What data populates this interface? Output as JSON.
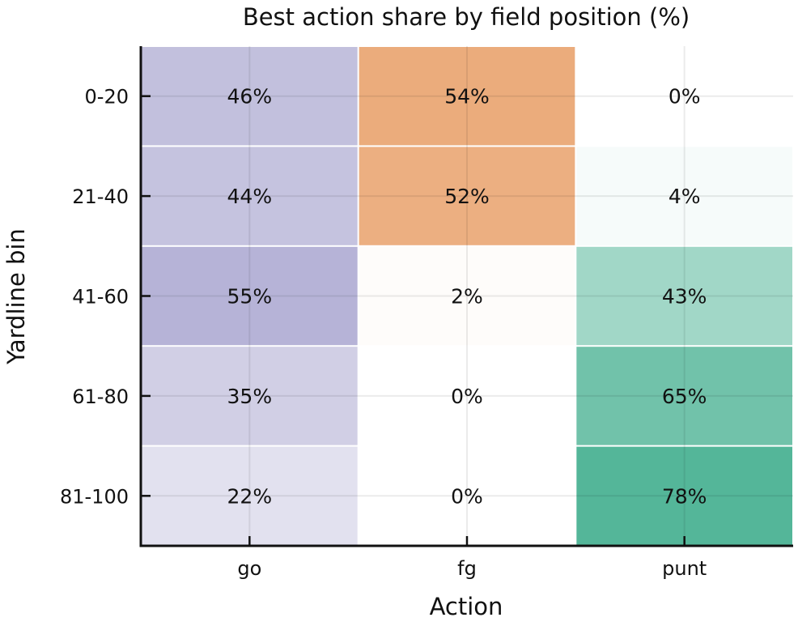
{
  "chart_data": {
    "type": "heatmap",
    "title": "Best action share by field position (%)",
    "xlabel": "Action",
    "ylabel": "Yardline bin",
    "x_categories": [
      "go",
      "fg",
      "punt"
    ],
    "y_categories": [
      "0-20",
      "21-40",
      "41-60",
      "61-80",
      "81-100"
    ],
    "values": [
      [
        46,
        54,
        0
      ],
      [
        44,
        52,
        4
      ],
      [
        55,
        2,
        43
      ],
      [
        35,
        0,
        65
      ],
      [
        22,
        0,
        78
      ]
    ],
    "value_labels": [
      [
        "46%",
        "54%",
        "0%"
      ],
      [
        "44%",
        "52%",
        "4%"
      ],
      [
        "55%",
        "2%",
        "43%"
      ],
      [
        "35%",
        "0%",
        "65%"
      ],
      [
        "22%",
        "0%",
        "78%"
      ]
    ],
    "column_colors": {
      "go": "#7570b3",
      "fg": "#d95f02",
      "punt": "#1b9e77"
    },
    "grid": true
  }
}
